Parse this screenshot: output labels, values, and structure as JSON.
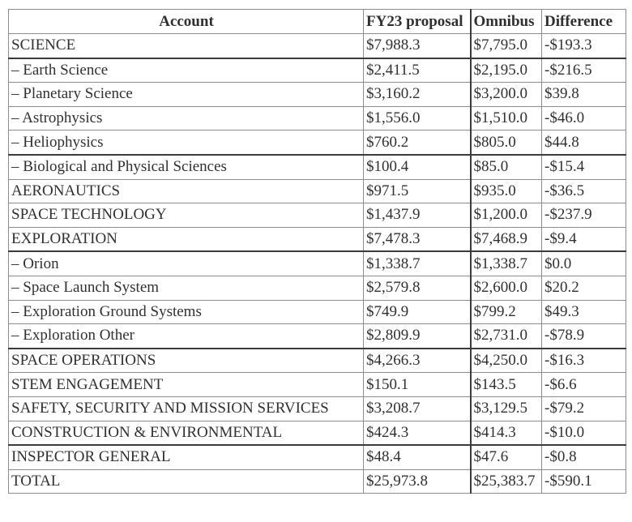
{
  "chart_data": {
    "type": "table",
    "title": "",
    "columns": [
      "Account",
      "FY23 proposal",
      "Omnibus",
      "Difference"
    ],
    "rows": [
      [
        "SCIENCE",
        "$7,988.3",
        "$7,795.0",
        "-$193.3"
      ],
      [
        "– Earth Science",
        "$2,411.5",
        "$2,195.0",
        "-$216.5"
      ],
      [
        "– Planetary Science",
        "$3,160.2",
        "$3,200.0",
        "$39.8"
      ],
      [
        "– Astrophysics",
        "$1,556.0",
        "$1,510.0",
        "-$46.0"
      ],
      [
        "– Heliophysics",
        "$760.2",
        "$805.0",
        "$44.8"
      ],
      [
        "– Biological and Physical Sciences",
        "$100.4",
        "$85.0",
        "-$15.4"
      ],
      [
        "AERONAUTICS",
        "$971.5",
        "$935.0",
        "-$36.5"
      ],
      [
        "SPACE TECHNOLOGY",
        "$1,437.9",
        "$1,200.0",
        "-$237.9"
      ],
      [
        "EXPLORATION",
        "$7,478.3",
        "$7,468.9",
        "-$9.4"
      ],
      [
        "– Orion",
        "$1,338.7",
        "$1,338.7",
        "$0.0"
      ],
      [
        "– Space Launch System",
        "$2,579.8",
        "$2,600.0",
        "$20.2"
      ],
      [
        "– Exploration Ground Systems",
        "$749.9",
        "$799.2",
        "$49.3"
      ],
      [
        "– Exploration Other",
        "$2,809.9",
        "$2,731.0",
        "-$78.9"
      ],
      [
        "SPACE OPERATIONS",
        "$4,266.3",
        "$4,250.0",
        "-$16.3"
      ],
      [
        "STEM ENGAGEMENT",
        "$150.1",
        "$143.5",
        "-$6.6"
      ],
      [
        "SAFETY, SECURITY AND MISSION SERVICES",
        "$3,208.7",
        "$3,129.5",
        "-$79.2"
      ],
      [
        "CONSTRUCTION & ENVIRONMENTAL",
        "$424.3",
        "$414.3",
        "-$10.0"
      ],
      [
        "INSPECTOR GENERAL",
        "$48.4",
        "$47.6",
        "-$0.8"
      ],
      [
        "TOTAL",
        "$25,973.8",
        "$25,383.7",
        "-$590.1"
      ]
    ]
  },
  "style": {
    "thick_top_rows": [
      1,
      5,
      9,
      13,
      17
    ],
    "colors": {
      "text": "#303030",
      "thin_border": "#8c8c8c",
      "thick_border": "#3b3b3b",
      "background": "#ffffff"
    }
  }
}
